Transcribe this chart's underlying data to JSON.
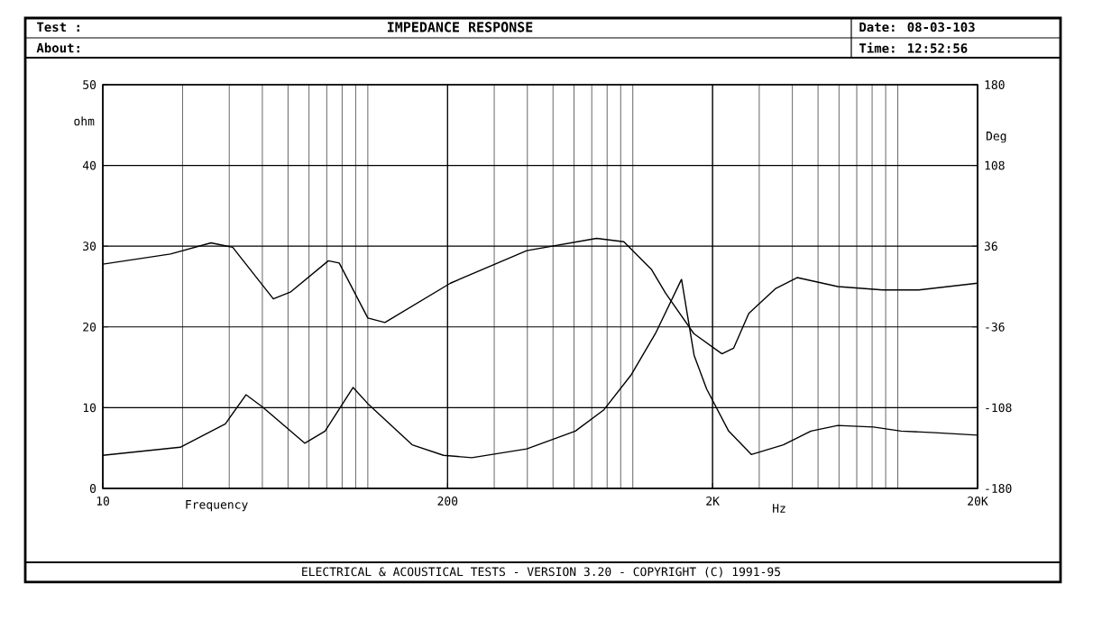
{
  "chart_data": {
    "type": "line",
    "title": "IMPEDANCE RESPONSE",
    "xlabel": "Frequency",
    "ylabel": "ohm",
    "y2label": "Deg",
    "annotations": [
      "Test :",
      "About:",
      "Date: 08-03-103",
      "Time: 12:52:56",
      "Hz",
      "ELECTRICAL & ACOUSTICAL TESTS - VERSION 3.20 - COPYRIGHT (C) 1991-95"
    ],
    "log": "x",
    "grid": true,
    "xlim": [
      10,
      20000
    ],
    "xticks": [
      10,
      200,
      {
        "value": 2000,
        "label": "2K"
      },
      {
        "value": 20000,
        "label": "20K"
      }
    ],
    "ylim": [
      0,
      50
    ],
    "yticks": [
      0,
      10,
      20,
      30,
      40,
      50
    ],
    "y2lim": [
      -180,
      180
    ],
    "y2ticks": [
      -180,
      -108,
      -36,
      36,
      108,
      180
    ],
    "series": [
      {
        "color": "#000000",
        "x": [
          10,
          19.6,
          29,
          34.7,
          40,
          57.8,
          69,
          88,
          100,
          147,
          193,
          247,
          398,
          607,
          776,
          983,
          1218,
          1527,
          1703,
          1900,
          2300,
          2800,
          3700,
          4700,
          5940,
          8100,
          10300,
          13800,
          20000
        ],
        "values": [
          4.1,
          5.1,
          8.0,
          11.6,
          10.1,
          5.6,
          7.1,
          12.5,
          10.5,
          5.4,
          4.1,
          3.8,
          4.9,
          7.1,
          9.7,
          14,
          19.2,
          25.9,
          16.5,
          12.3,
          7.1,
          4.2,
          5.4,
          7.1,
          7.8,
          7.6,
          7.1,
          6.9,
          6.6
        ]
      },
      {
        "color": "#000000",
        "axis": "y2",
        "x": [
          10,
          18,
          25.6,
          30.9,
          44,
          51,
          71,
          78,
          100,
          116,
          205,
          398,
          730,
          925,
          1178,
          1330,
          1700,
          2170,
          2400,
          2740,
          3450,
          4170,
          5940,
          8770,
          12000,
          20000
        ],
        "values": [
          20,
          29,
          39,
          35,
          -11,
          -5,
          23,
          21,
          -28,
          -32,
          3,
          32,
          43,
          40,
          15,
          -6,
          -42,
          -60,
          -55,
          -24,
          -2,
          8,
          0,
          -3,
          -3,
          3
        ]
      }
    ]
  }
}
